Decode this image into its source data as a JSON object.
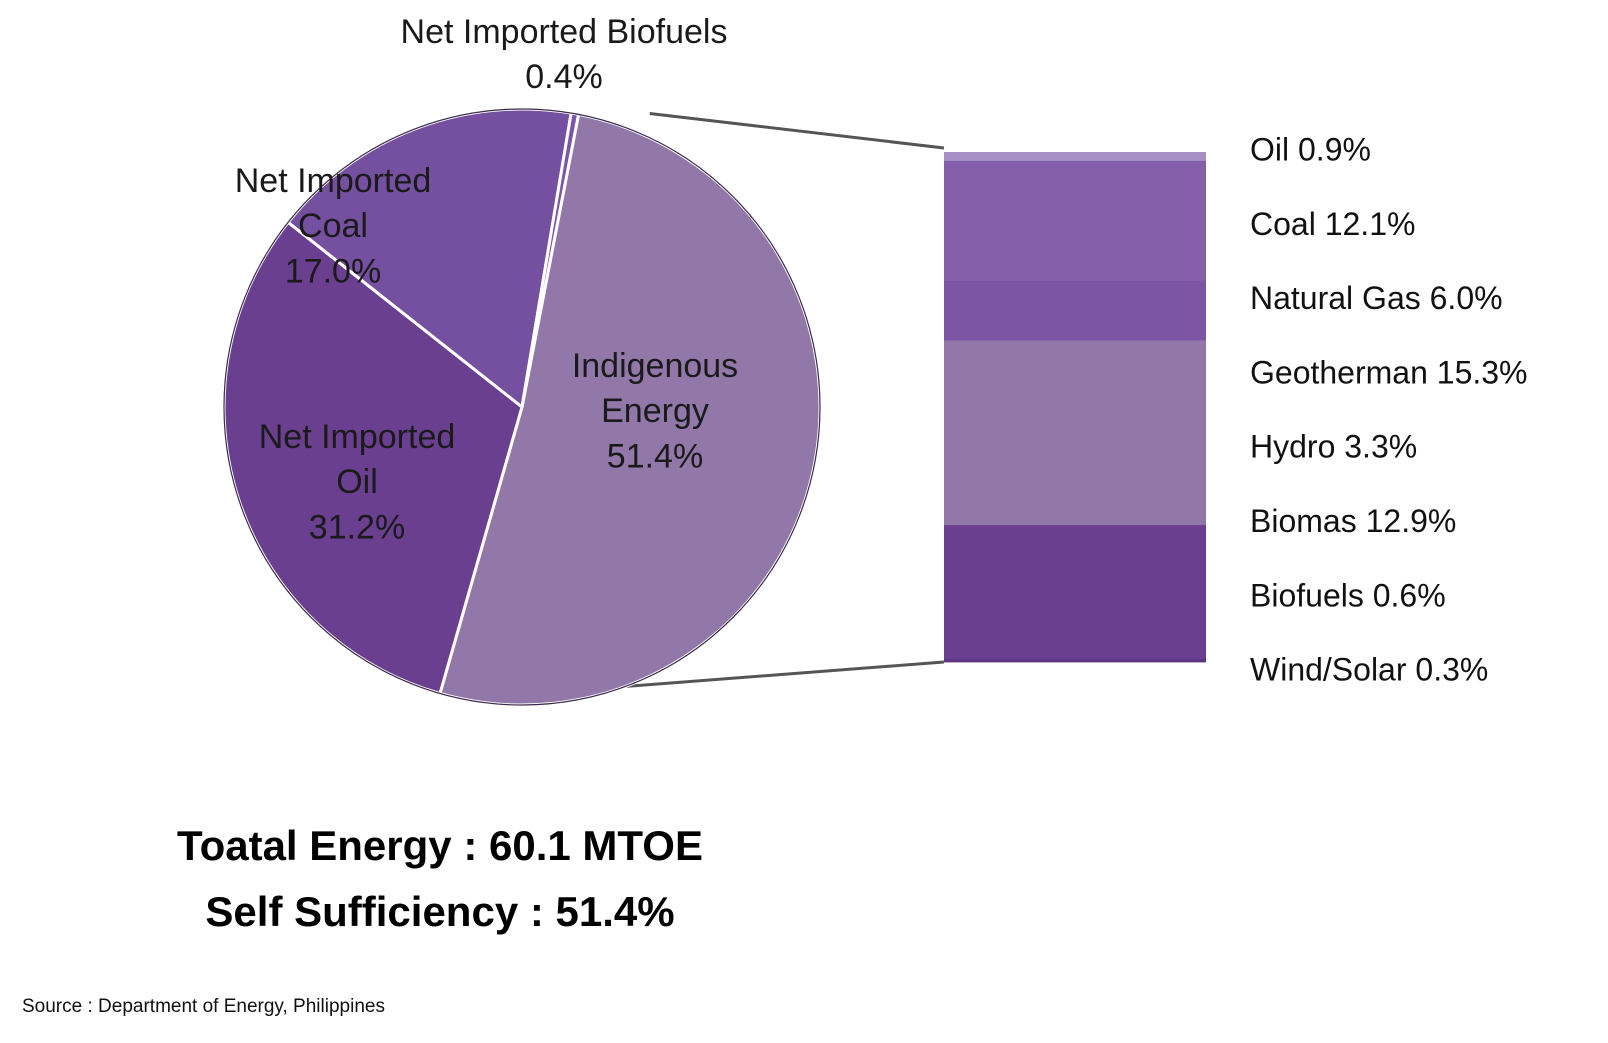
{
  "chart_data": {
    "type": "pie",
    "pie": {
      "slices": [
        {
          "label_lines": [
            "Indigenous",
            "Energy",
            "51.4%"
          ],
          "value": 51.4,
          "color": "#9278a9"
        },
        {
          "label_lines": [
            "Net Imported",
            "Oil",
            "31.2%"
          ],
          "value": 31.2,
          "color": "#6a3f90"
        },
        {
          "label_lines": [
            "Net Imported",
            "Coal",
            "17.0%"
          ],
          "value": 17.0,
          "color": "#7550a0"
        },
        {
          "label_lines": [
            "Net Imported Biofuels",
            "0.4%"
          ],
          "value": 0.4,
          "color": "#7a55a8"
        }
      ]
    },
    "breakdown": {
      "segments": [
        {
          "label": "Oil 0.9%",
          "value": 0.9,
          "color": "#a58fc4"
        },
        {
          "label": "Coal 12.1%",
          "value": 12.1,
          "color": "#855fa9"
        },
        {
          "label": "Natural Gas 6.0%",
          "value": 6.0,
          "color": "#7c56a4"
        },
        {
          "label": "Geotherman 15.3%",
          "value": 15.3,
          "color": "#9278a9"
        },
        {
          "label": "Hydro 3.3%",
          "value": 3.3,
          "color": "#9278a9"
        },
        {
          "label": "Biomas 12.9%",
          "value": 12.9,
          "color": "#6a3f90"
        },
        {
          "label": "Biofuels 0.6%",
          "value": 0.6,
          "color": "#6a3f90"
        },
        {
          "label": "Wind/Solar 0.3%",
          "value": 0.3,
          "color": "#5b3580"
        }
      ]
    }
  },
  "summary": {
    "total": "Toatal Energy : 60.1 MTOE",
    "self_sufficiency": "Self Sufficiency : 51.4%"
  },
  "source": "Source : Department of Energy, Philippines"
}
